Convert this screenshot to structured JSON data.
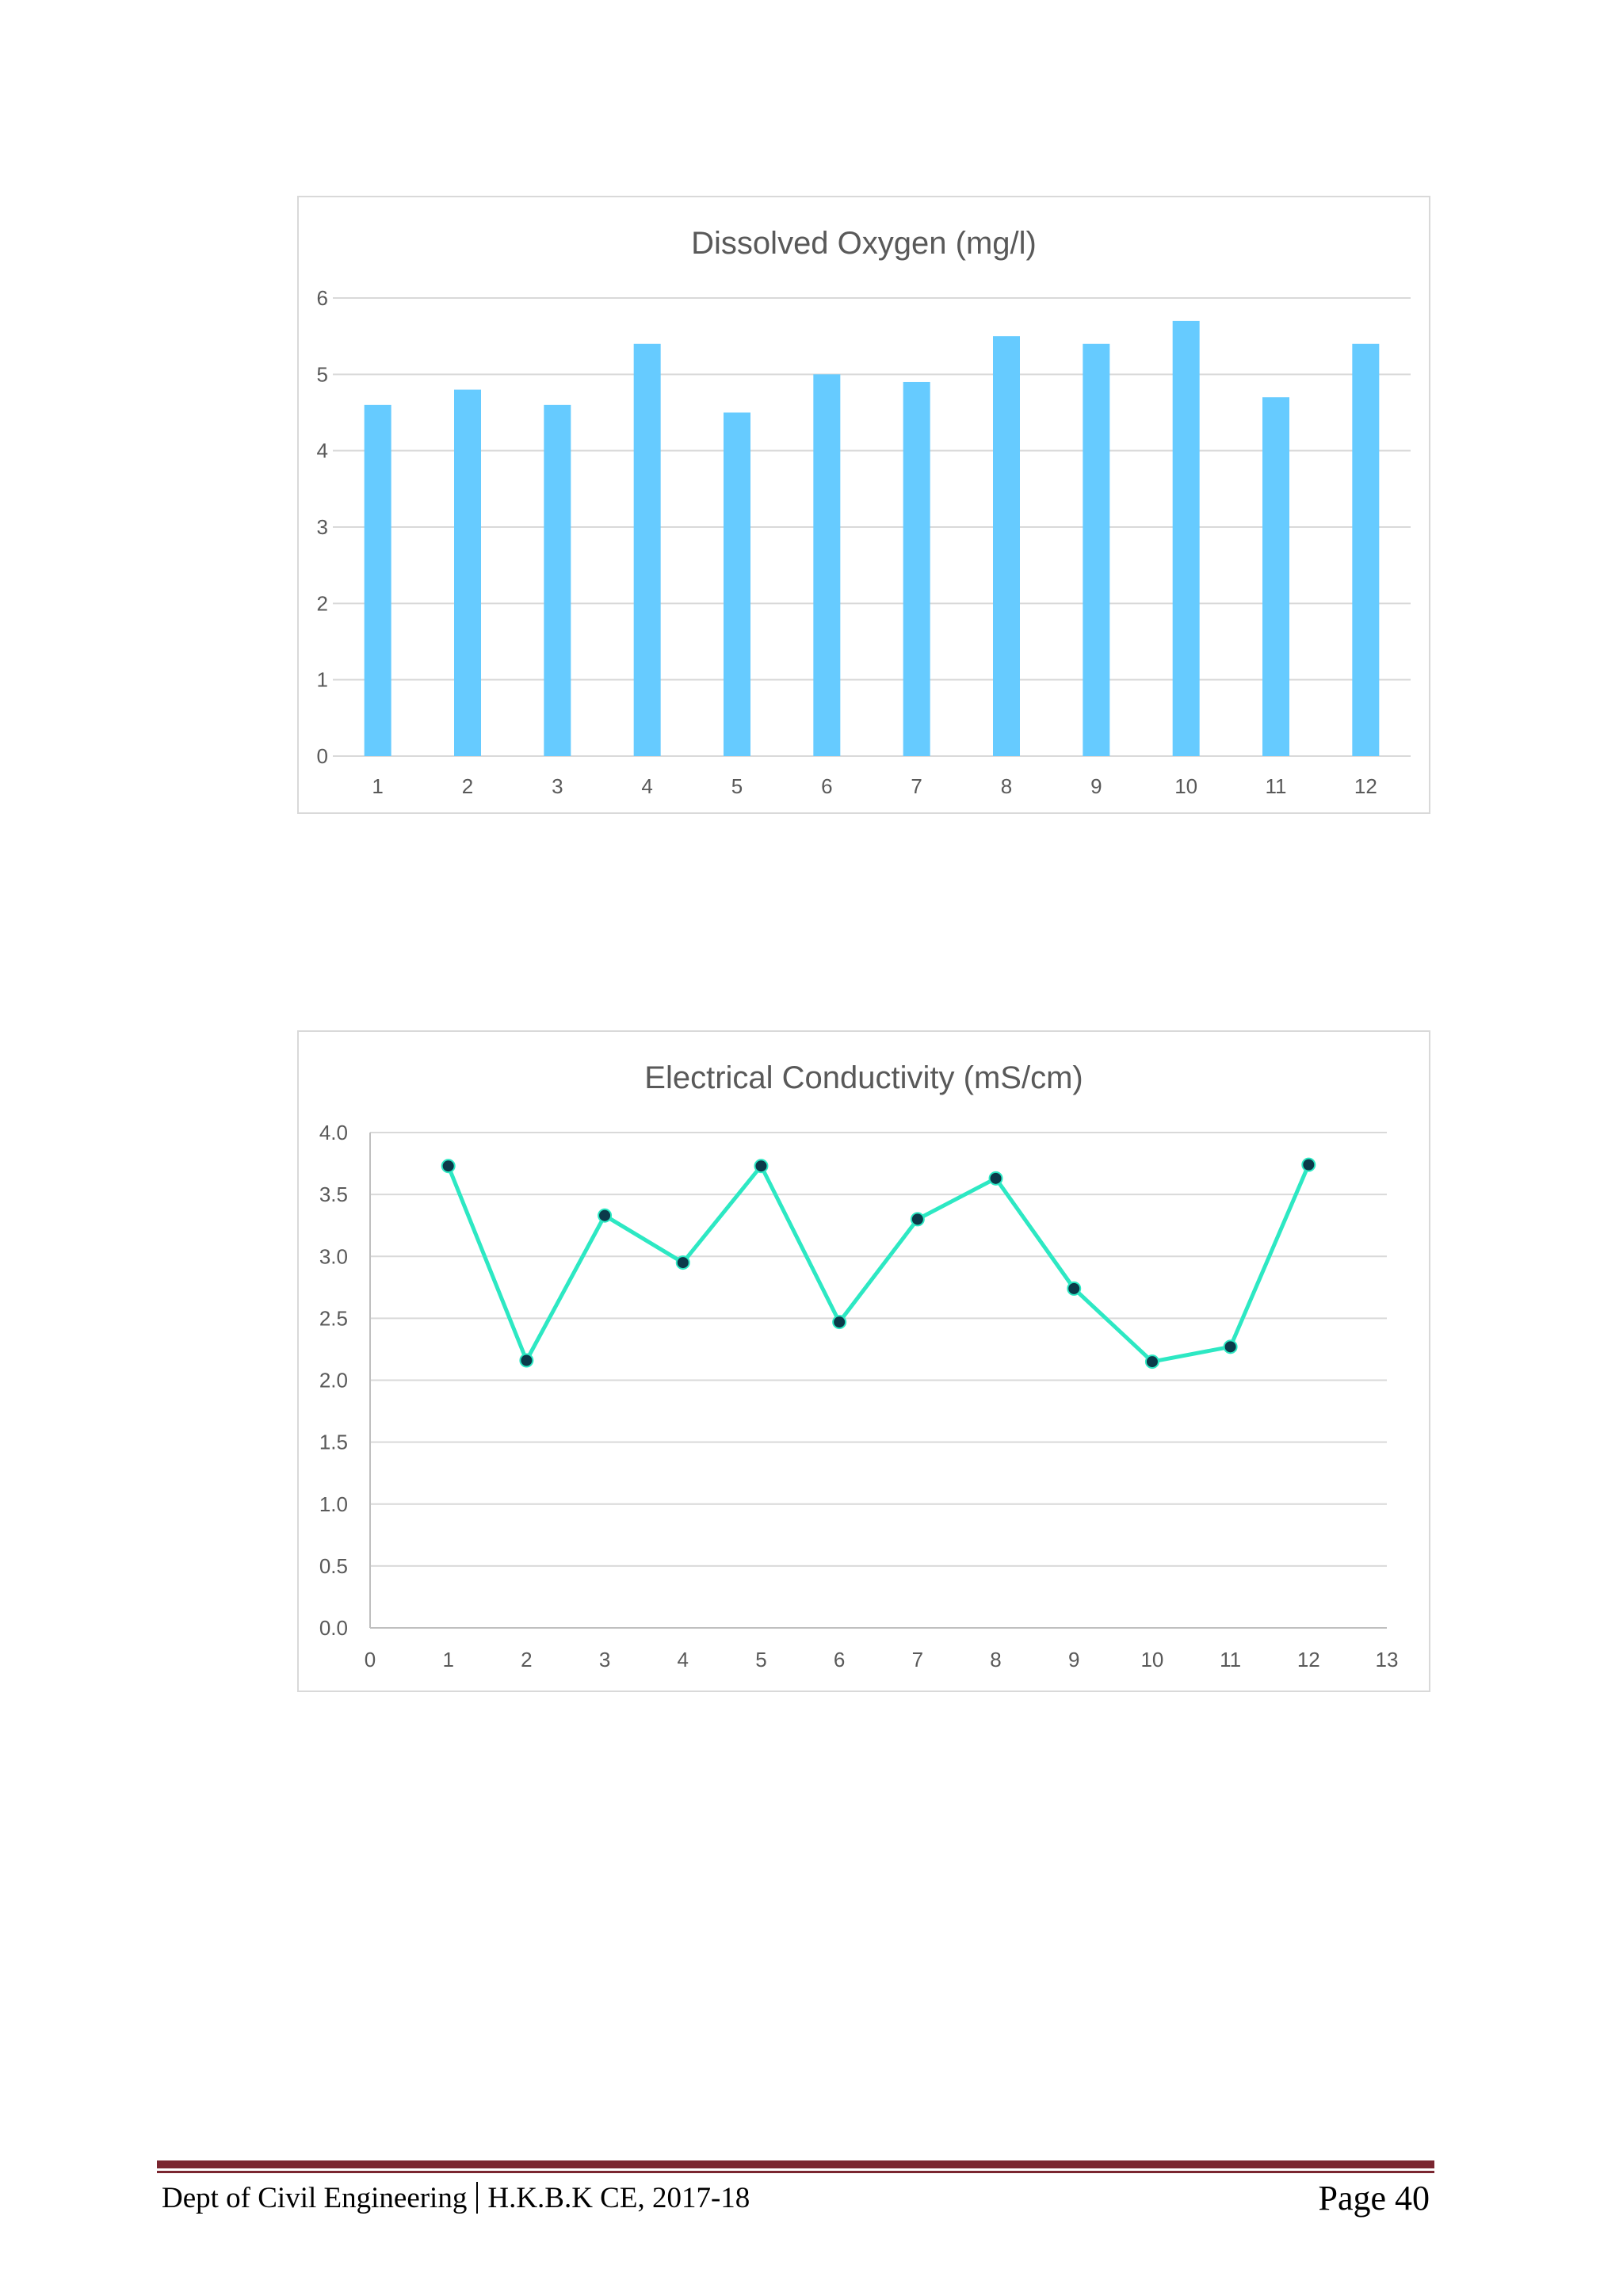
{
  "charts": [
    {
      "type": "bar",
      "title": "Dissolved Oxygen (mg/l)",
      "categories": [
        "1",
        "2",
        "3",
        "4",
        "5",
        "6",
        "7",
        "8",
        "9",
        "10",
        "11",
        "12"
      ],
      "values": [
        4.6,
        4.8,
        4.6,
        5.4,
        4.5,
        5.0,
        4.9,
        5.5,
        5.4,
        5.7,
        4.7,
        5.4
      ],
      "ylim": [
        0,
        6
      ],
      "yticks": [
        "0",
        "1",
        "2",
        "3",
        "4",
        "5",
        "6"
      ],
      "grid": true,
      "color": "#66cbff"
    },
    {
      "type": "line",
      "title": "Electrical Conductivity (mS/cm)",
      "x": [
        1,
        2,
        3,
        4,
        5,
        6,
        7,
        8,
        9,
        10,
        11,
        12
      ],
      "values": [
        3.73,
        2.16,
        3.33,
        2.95,
        3.73,
        2.47,
        3.3,
        3.63,
        2.74,
        2.15,
        2.27,
        3.74
      ],
      "xlim": [
        0,
        13
      ],
      "ylim": [
        0,
        4
      ],
      "xticks": [
        "0",
        "1",
        "2",
        "3",
        "4",
        "5",
        "6",
        "7",
        "8",
        "9",
        "10",
        "11",
        "12",
        "13"
      ],
      "yticks": [
        "0.0",
        "0.5",
        "1.0",
        "1.5",
        "2.0",
        "2.5",
        "3.0",
        "3.5",
        "4.0"
      ],
      "grid": true,
      "color": "#2de8c3",
      "marker_color": "#0b3a4a"
    }
  ],
  "chart_data": [
    {
      "type": "bar",
      "title": "Dissolved Oxygen (mg/l)",
      "categories": [
        "1",
        "2",
        "3",
        "4",
        "5",
        "6",
        "7",
        "8",
        "9",
        "10",
        "11",
        "12"
      ],
      "values": [
        4.6,
        4.8,
        4.6,
        5.4,
        4.5,
        5.0,
        4.9,
        5.5,
        5.4,
        5.7,
        4.7,
        5.4
      ],
      "ylim": [
        0,
        6
      ]
    },
    {
      "type": "line",
      "title": "Electrical Conductivity (mS/cm)",
      "x": [
        1,
        2,
        3,
        4,
        5,
        6,
        7,
        8,
        9,
        10,
        11,
        12
      ],
      "values": [
        3.73,
        2.16,
        3.33,
        2.95,
        3.73,
        2.47,
        3.3,
        3.63,
        2.74,
        2.15,
        2.27,
        3.74
      ],
      "xlim": [
        0,
        13
      ],
      "ylim": [
        0,
        4
      ]
    }
  ],
  "footer": {
    "left_part1": "Dept of Civil Engineering",
    "left_part2": "H.K.B.K CE, 2017-18",
    "right": "Page 40"
  }
}
